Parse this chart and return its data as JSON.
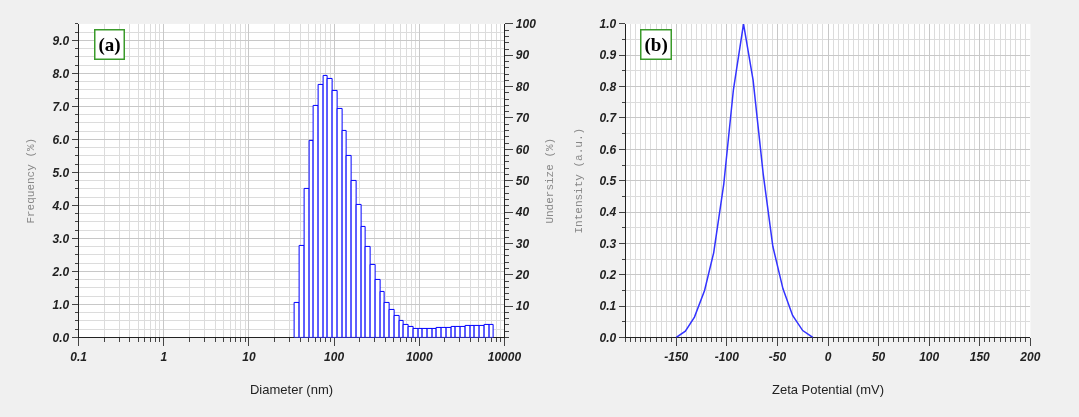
{
  "chart_data": [
    {
      "type": "histogram",
      "xlabel": "Diameter (nm)",
      "ylabel": "Frequency (%)",
      "y2label": "Undersize (%)",
      "annotations": [
        "(a)"
      ],
      "bins": [
        34.7,
        39.4,
        44.8,
        50.9,
        57.9,
        65.8,
        74.8,
        85.0,
        96.6,
        109.8,
        124.8,
        141.9,
        161.3,
        183.4,
        208.4,
        236.9,
        269.3,
        306.2,
        347.9,
        395.6,
        449.7,
        511.0,
        581.0,
        660.3,
        750.7,
        853.2,
        969.7,
        1102,
        1253,
        1424,
        1619,
        1840,
        2092,
        2378,
        2703,
        3072,
        3492,
        3969,
        4512,
        5129,
        5829,
        6626,
        7532
      ],
      "values": [
        1.06,
        2.76,
        4.49,
        5.95,
        7.01,
        7.66,
        7.91,
        7.83,
        7.47,
        6.92,
        6.25,
        5.51,
        4.75,
        4.01,
        3.34,
        2.73,
        2.2,
        1.74,
        1.37,
        1.06,
        0.83,
        0.65,
        0.5,
        0.39,
        0.32,
        0.27,
        0.25,
        0.25,
        0.26,
        0.27,
        0.28,
        0.29,
        0.3,
        0.31,
        0.32,
        0.33,
        0.34,
        0.35,
        0.36,
        0.36,
        0.37,
        0.37
      ],
      "color": "#0000ff",
      "log": "x",
      "grid": true,
      "xlim": [
        0.1,
        10000
      ],
      "xticks": [
        0.1,
        1,
        10,
        100,
        1000,
        10000
      ],
      "ylim": [
        0,
        9.5
      ],
      "yticks": [
        {
          "value": 0,
          "label": "0.0"
        },
        {
          "value": 1,
          "label": "1.0"
        },
        {
          "value": 2,
          "label": "2.0"
        },
        {
          "value": 3,
          "label": "3.0"
        },
        {
          "value": 4,
          "label": "4.0"
        },
        {
          "value": 5,
          "label": "5.0"
        },
        {
          "value": 6,
          "label": "6.0"
        },
        {
          "value": 7,
          "label": "7.0"
        },
        {
          "value": 8,
          "label": "8.0"
        },
        {
          "value": 9,
          "label": "9.0"
        }
      ],
      "y2lim": [
        0,
        100
      ],
      "y2ticks": [
        10,
        20,
        30,
        40,
        50,
        60,
        70,
        80,
        90,
        100
      ]
    },
    {
      "type": "line",
      "xlabel": "Zeta Potential (mV)",
      "ylabel": "Intensity (a.u.)",
      "annotations": [
        "(b)"
      ],
      "x": [
        -150,
        -141,
        -132,
        -122,
        -113,
        -103,
        -93.5,
        -83.5,
        -74,
        -64,
        -54.5,
        -44.5,
        -35,
        -25,
        -15
      ],
      "values": [
        0,
        0.02,
        0.065,
        0.15,
        0.27,
        0.49,
        0.79,
        1.0,
        0.82,
        0.52,
        0.29,
        0.155,
        0.07,
        0.022,
        0
      ],
      "color": "#3333ff",
      "grid": true,
      "xlim": [
        -200,
        200
      ],
      "xticks": [
        -150,
        -100,
        -50,
        0,
        50,
        100,
        150,
        200
      ],
      "ylim": [
        0,
        1
      ],
      "yticks": [
        {
          "value": 0,
          "label": "0.0"
        },
        {
          "value": 0.1,
          "label": "0.1"
        },
        {
          "value": 0.2,
          "label": "0.2"
        },
        {
          "value": 0.3,
          "label": "0.3"
        },
        {
          "value": 0.4,
          "label": "0.4"
        },
        {
          "value": 0.5,
          "label": "0.5"
        },
        {
          "value": 0.6,
          "label": "0.6"
        },
        {
          "value": 0.7,
          "label": "0.7"
        },
        {
          "value": 0.8,
          "label": "0.8"
        },
        {
          "value": 0.9,
          "label": "0.9"
        },
        {
          "value": 1.0,
          "label": "1.0"
        }
      ]
    }
  ]
}
